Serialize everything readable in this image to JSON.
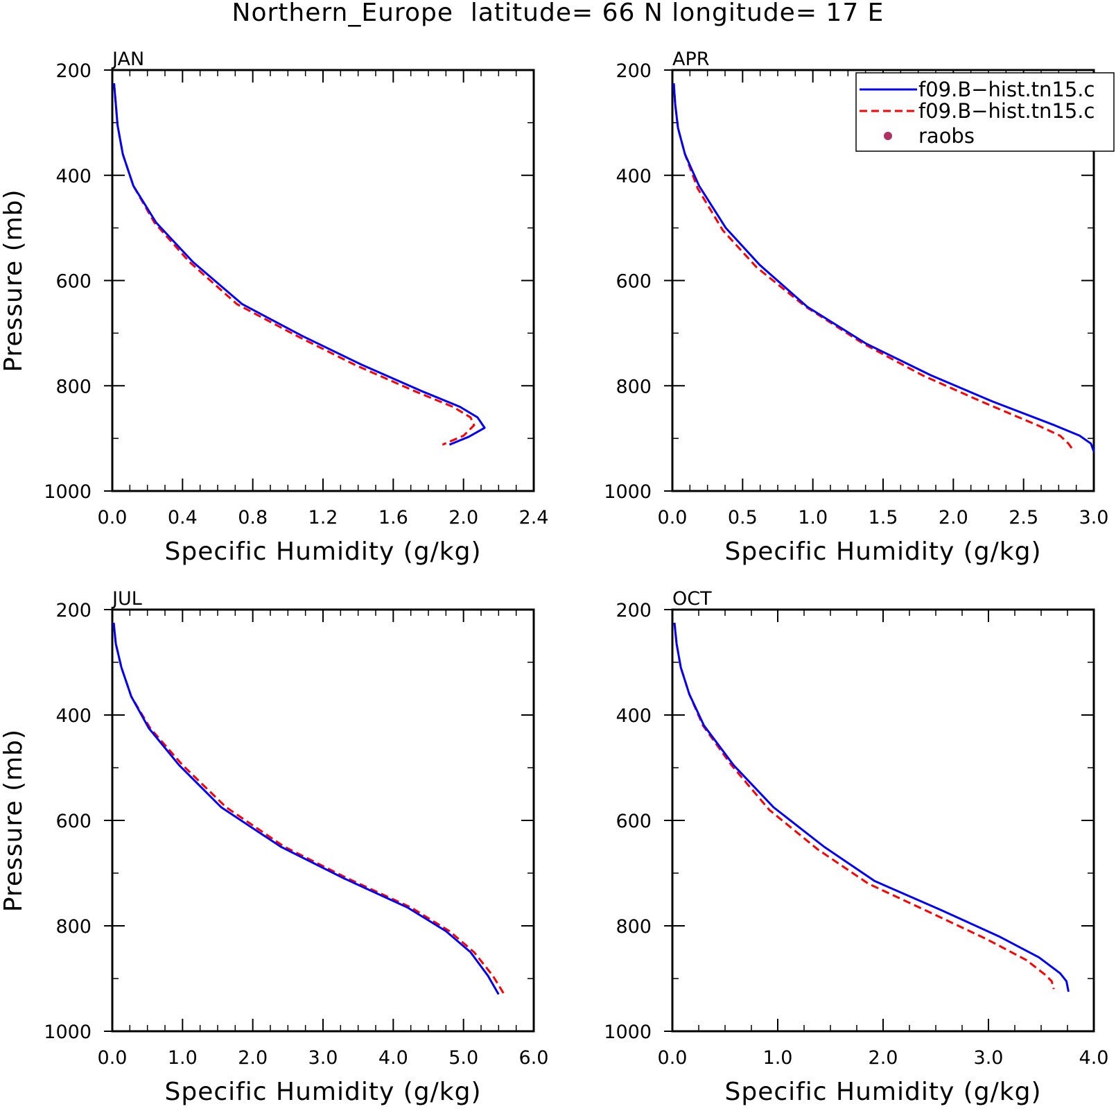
{
  "figure": {
    "title": "Northern_Europe  latitude= 66 N longitude= 17 E"
  },
  "colors": {
    "series_1": "#0000ff",
    "series_2": "#ff0000",
    "raobs": "#b03060",
    "axes": "#000000"
  },
  "legend": {
    "placement": "top-right of APR panel",
    "entries": [
      {
        "label": "f09.B−hist.tn15.c",
        "style": "solid",
        "color": "#0000ff"
      },
      {
        "label": "f09.B−hist.tn15.c",
        "style": "dashed",
        "color": "#ff0000"
      },
      {
        "label": "raobs",
        "style": "marker",
        "color": "#b03060"
      }
    ]
  },
  "chart_data": [
    {
      "type": "line",
      "panel_label": "JAN",
      "xlabel": "Specific Humidity (g/kg)",
      "ylabel": "Pressure (mb)",
      "xlim": [
        0,
        2.4
      ],
      "ylim": [
        200,
        1000
      ],
      "y_inverted": true,
      "xticks": [
        "0.0",
        "0.4",
        "0.8",
        "1.2",
        "1.6",
        "2.0",
        "2.4"
      ],
      "yticks": [
        "200",
        "400",
        "600",
        "800",
        "1000"
      ],
      "series": [
        {
          "x": [
            0.01,
            0.02,
            0.03,
            0.06,
            0.12,
            0.25,
            0.46,
            0.74,
            1.08,
            1.42,
            1.76,
            1.98,
            2.08,
            2.12,
            2.03,
            1.92
          ],
          "y": [
            225,
            265,
            305,
            360,
            420,
            490,
            565,
            645,
            705,
            760,
            810,
            840,
            860,
            880,
            897,
            912
          ]
        },
        {
          "x": [
            0.01,
            0.02,
            0.03,
            0.06,
            0.12,
            0.24,
            0.44,
            0.71,
            1.05,
            1.38,
            1.72,
            1.94,
            2.04,
            2.06,
            2.0,
            1.88
          ],
          "y": [
            225,
            265,
            305,
            360,
            420,
            490,
            565,
            645,
            705,
            760,
            810,
            840,
            860,
            875,
            895,
            912
          ]
        }
      ]
    },
    {
      "type": "line",
      "panel_label": "APR",
      "xlabel": "Specific Humidity (g/kg)",
      "ylabel": "",
      "xlim": [
        0,
        3.0
      ],
      "ylim": [
        200,
        1000
      ],
      "y_inverted": true,
      "xticks": [
        "0.0",
        "0.5",
        "1.0",
        "1.5",
        "2.0",
        "2.5",
        "3.0"
      ],
      "yticks": [
        "200",
        "400",
        "600",
        "800",
        "1000"
      ],
      "series": [
        {
          "x": [
            0.01,
            0.02,
            0.04,
            0.09,
            0.19,
            0.38,
            0.62,
            0.96,
            1.38,
            1.84,
            2.28,
            2.72,
            2.9,
            2.98,
            3.0
          ],
          "y": [
            225,
            265,
            310,
            360,
            420,
            500,
            570,
            650,
            720,
            780,
            830,
            875,
            895,
            910,
            925
          ]
        },
        {
          "x": [
            0.01,
            0.02,
            0.04,
            0.09,
            0.18,
            0.36,
            0.6,
            0.95,
            1.36,
            1.78,
            2.2,
            2.6,
            2.76,
            2.82,
            2.86
          ],
          "y": [
            225,
            265,
            310,
            360,
            425,
            505,
            575,
            650,
            720,
            780,
            830,
            875,
            895,
            910,
            925
          ]
        }
      ]
    },
    {
      "type": "line",
      "panel_label": "JUL",
      "xlabel": "Specific Humidity (g/kg)",
      "ylabel": "Pressure (mb)",
      "xlim": [
        0,
        6.0
      ],
      "ylim": [
        200,
        1000
      ],
      "y_inverted": true,
      "xticks": [
        "0.0",
        "1.0",
        "2.0",
        "3.0",
        "4.0",
        "5.0",
        "6.0"
      ],
      "yticks": [
        "200",
        "400",
        "600",
        "800",
        "1000"
      ],
      "series": [
        {
          "x": [
            0.02,
            0.05,
            0.13,
            0.27,
            0.52,
            0.95,
            1.55,
            2.4,
            3.3,
            4.2,
            4.75,
            5.1,
            5.35,
            5.5
          ],
          "y": [
            225,
            265,
            310,
            365,
            425,
            495,
            575,
            650,
            710,
            765,
            810,
            850,
            895,
            930
          ]
        },
        {
          "x": [
            0.02,
            0.05,
            0.13,
            0.27,
            0.54,
            1.0,
            1.62,
            2.45,
            3.35,
            4.25,
            4.8,
            5.15,
            5.42,
            5.58
          ],
          "y": [
            225,
            265,
            310,
            365,
            425,
            495,
            575,
            650,
            710,
            765,
            810,
            850,
            895,
            930
          ]
        }
      ]
    },
    {
      "type": "line",
      "panel_label": "OCT",
      "xlabel": "Specific Humidity (g/kg)",
      "ylabel": "",
      "xlim": [
        0,
        4.0
      ],
      "ylim": [
        200,
        1000
      ],
      "y_inverted": true,
      "xticks": [
        "0.0",
        "1.0",
        "2.0",
        "3.0",
        "4.0"
      ],
      "yticks": [
        "200",
        "400",
        "600",
        "800",
        "1000"
      ],
      "series": [
        {
          "x": [
            0.02,
            0.04,
            0.08,
            0.16,
            0.3,
            0.58,
            0.96,
            1.44,
            1.92,
            2.55,
            3.1,
            3.48,
            3.68,
            3.74,
            3.76
          ],
          "y": [
            225,
            265,
            310,
            360,
            420,
            495,
            575,
            650,
            715,
            770,
            820,
            860,
            890,
            905,
            925
          ]
        },
        {
          "x": [
            0.02,
            0.04,
            0.08,
            0.16,
            0.29,
            0.56,
            0.92,
            1.38,
            1.86,
            2.45,
            2.98,
            3.36,
            3.54,
            3.6,
            3.62
          ],
          "y": [
            225,
            265,
            310,
            360,
            420,
            495,
            580,
            655,
            720,
            775,
            825,
            865,
            893,
            905,
            920
          ]
        }
      ]
    }
  ]
}
